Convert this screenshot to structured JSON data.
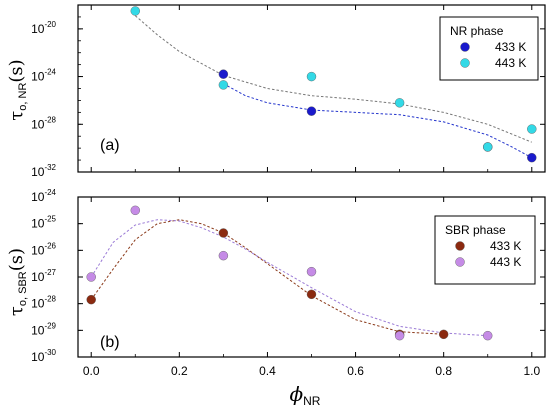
{
  "colors": {
    "nr_433": "#1a1acc",
    "nr_443": "#33d9e6",
    "sbr_433": "#8b2a10",
    "sbr_443": "#c58be6",
    "fit_gray": "#777777",
    "fit_blue": "#2233cc",
    "fit_brown": "#8b3a1a",
    "fit_purple": "#9b7bd6"
  },
  "x_axis": {
    "label_main": "ϕ",
    "label_sub": "NR",
    "ticks": [
      "0.0",
      "0.2",
      "0.4",
      "0.6",
      "0.8",
      "1.0"
    ]
  },
  "chart_data": [
    {
      "type": "scatter",
      "panel_label": "(a)",
      "ylabel_main": "τ",
      "ylabel_sub": "o, NR",
      "ylabel_unit": "(s)",
      "yscale": "log",
      "ylim_exp": [
        -32,
        -18
      ],
      "xlim": [
        -0.03,
        1.03
      ],
      "ytick_labels": [
        {
          "exp": -20,
          "base": "10",
          "sup": "-20"
        },
        {
          "exp": -24,
          "base": "10",
          "sup": "-24"
        },
        {
          "exp": -28,
          "base": "10",
          "sup": "-28"
        },
        {
          "exp": -32,
          "base": "10",
          "sup": "-32"
        }
      ],
      "legend": {
        "title": "NR phase",
        "placement": "top-right"
      },
      "series": [
        {
          "name": "433 K",
          "color_key": "nr_433",
          "x": [
            0.3,
            0.5,
            0.9,
            1.0
          ],
          "log10_y": [
            -23.8,
            -26.9,
            -29.9,
            -30.8
          ]
        },
        {
          "name": "443 K",
          "color_key": "nr_443",
          "x": [
            0.1,
            0.3,
            0.5,
            0.7,
            0.9,
            1.0
          ],
          "log10_y": [
            -18.5,
            -24.7,
            -24.0,
            -26.2,
            -29.9,
            -28.4
          ]
        }
      ],
      "fits": [
        {
          "color_key": "fit_gray",
          "x": [
            0.1,
            0.15,
            0.2,
            0.3,
            0.4,
            0.5,
            0.6,
            0.7,
            0.8,
            0.9,
            1.0
          ],
          "log10_y": [
            -18.9,
            -20.5,
            -21.9,
            -23.9,
            -25.0,
            -25.6,
            -25.9,
            -26.3,
            -27.0,
            -28.0,
            -29.5
          ]
        },
        {
          "color_key": "fit_blue",
          "x": [
            0.3,
            0.35,
            0.4,
            0.5,
            0.6,
            0.7,
            0.8,
            0.9,
            0.95,
            1.0
          ],
          "log10_y": [
            -24.6,
            -25.6,
            -26.2,
            -26.8,
            -27.0,
            -27.2,
            -27.8,
            -28.9,
            -29.8,
            -30.8
          ]
        }
      ]
    },
    {
      "type": "scatter",
      "panel_label": "(b)",
      "ylabel_main": "τ",
      "ylabel_sub": "o, SBR",
      "ylabel_unit": "(s)",
      "yscale": "log",
      "ylim_exp": [
        -30,
        -24
      ],
      "xlim": [
        -0.03,
        1.03
      ],
      "ytick_labels": [
        {
          "exp": -24,
          "base": "10",
          "sup": "-24"
        },
        {
          "exp": -25,
          "base": "10",
          "sup": "-25"
        },
        {
          "exp": -26,
          "base": "10",
          "sup": "-26"
        },
        {
          "exp": -27,
          "base": "10",
          "sup": "-27"
        },
        {
          "exp": -28,
          "base": "10",
          "sup": "-28"
        },
        {
          "exp": -29,
          "base": "10",
          "sup": "-29"
        },
        {
          "exp": -30,
          "base": "10",
          "sup": "-30"
        }
      ],
      "legend": {
        "title": "SBR phase",
        "placement": "top-right"
      },
      "series": [
        {
          "name": "433 K",
          "color_key": "sbr_433",
          "x": [
            0.0,
            0.3,
            0.5,
            0.7,
            0.8
          ],
          "log10_y": [
            -27.85,
            -25.35,
            -27.65,
            -29.15,
            -29.15
          ]
        },
        {
          "name": "443 K",
          "color_key": "sbr_443",
          "x": [
            0.0,
            0.1,
            0.3,
            0.5,
            0.7,
            0.9
          ],
          "log10_y": [
            -27.0,
            -24.5,
            -26.2,
            -26.8,
            -29.2,
            -29.2
          ]
        }
      ],
      "fits": [
        {
          "color_key": "fit_brown",
          "x": [
            0.0,
            0.05,
            0.1,
            0.15,
            0.2,
            0.25,
            0.3,
            0.35,
            0.4,
            0.5,
            0.6,
            0.7,
            0.8
          ],
          "log10_y": [
            -27.85,
            -26.7,
            -25.6,
            -25.0,
            -24.85,
            -25.0,
            -25.35,
            -25.9,
            -26.5,
            -27.7,
            -28.6,
            -29.05,
            -29.15
          ]
        },
        {
          "color_key": "fit_purple",
          "x": [
            0.0,
            0.05,
            0.1,
            0.15,
            0.2,
            0.25,
            0.3,
            0.35,
            0.4,
            0.5,
            0.6,
            0.7,
            0.8,
            0.9
          ],
          "log10_y": [
            -27.0,
            -25.7,
            -25.05,
            -24.85,
            -24.9,
            -25.15,
            -25.5,
            -25.95,
            -26.45,
            -27.4,
            -28.3,
            -28.85,
            -29.1,
            -29.2
          ]
        }
      ]
    }
  ]
}
